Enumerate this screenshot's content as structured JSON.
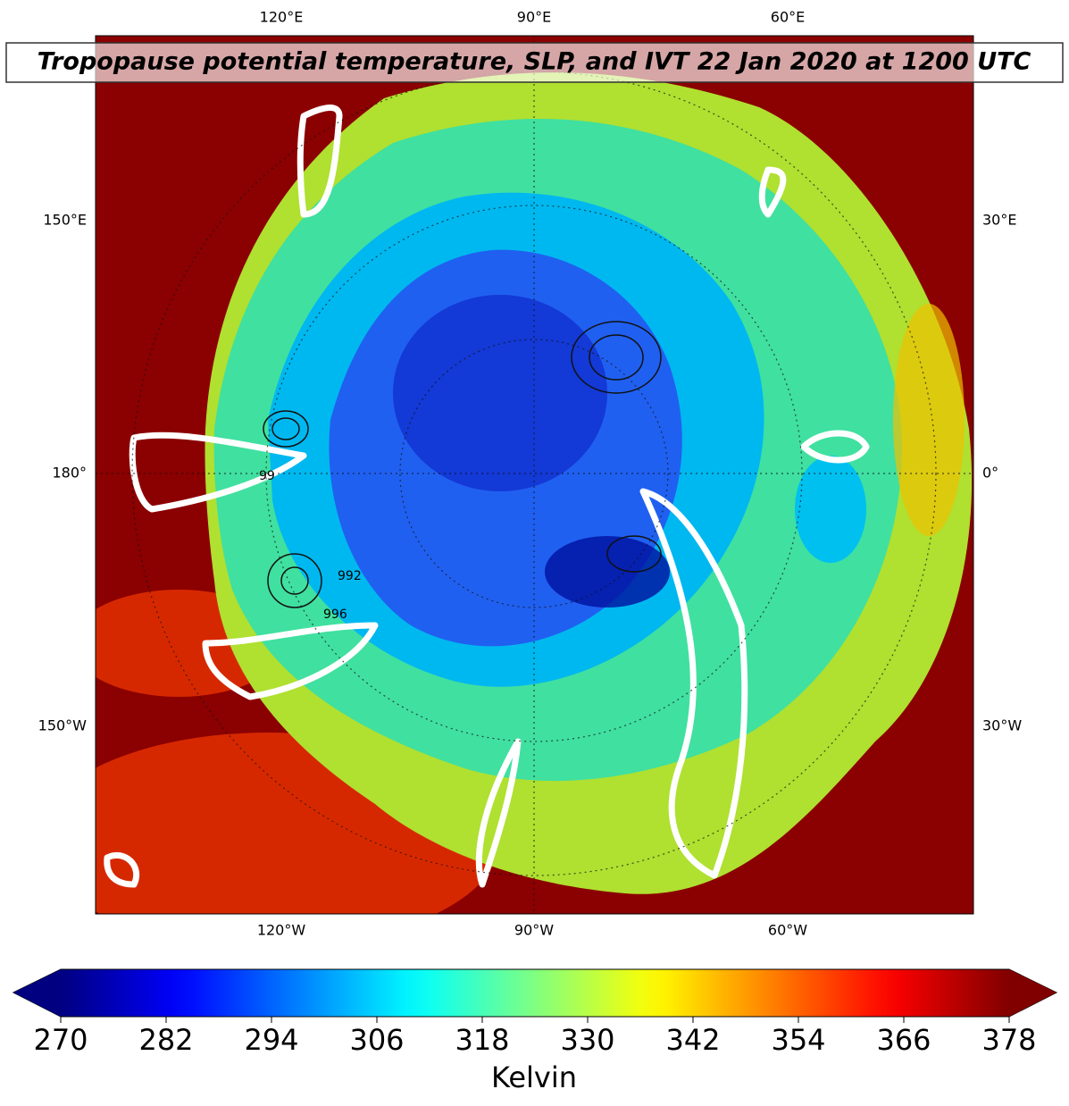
{
  "title": "Tropopause potential temperature, SLP, and IVT 22 Jan 2020 at 1200 UTC",
  "map": {
    "top_labels": [
      "120°E",
      "90°E",
      "60°E"
    ],
    "bottom_labels": [
      "120°W",
      "90°W",
      "60°W"
    ],
    "left_labels": [
      "150°E",
      "180°",
      "150°W"
    ],
    "right_labels": [
      "30°E",
      "0°",
      "30°W"
    ],
    "contour_labels": [
      "99",
      "992",
      "996"
    ]
  },
  "colorbar": {
    "colormap": "jet",
    "lim": [
      270,
      378
    ],
    "ticks": [
      270,
      282,
      294,
      306,
      318,
      330,
      342,
      354,
      366,
      378
    ],
    "label": "Kelvin"
  }
}
